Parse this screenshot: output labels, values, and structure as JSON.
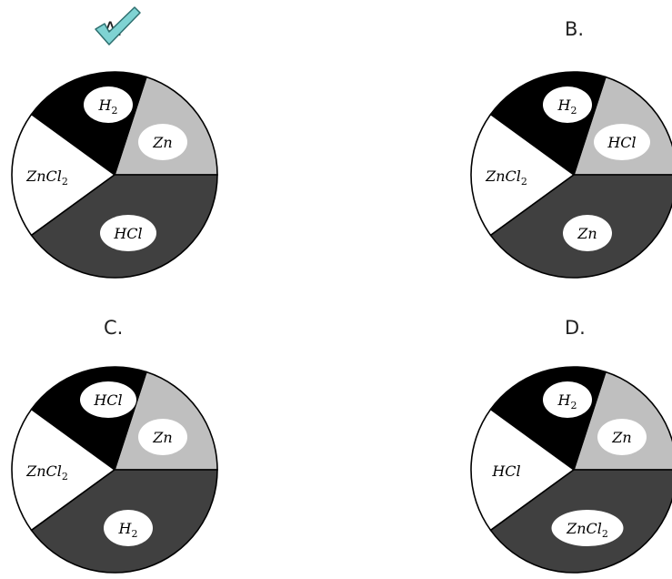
{
  "colors": {
    "black_slice": "#000000",
    "light_slice": "#bfbfbf",
    "white_slice": "#ffffff",
    "dark_slice": "#404040",
    "label_bg": "#ffffff",
    "outline": "#000000",
    "check_fill": "#7fd3d3",
    "check_stroke": "#2e6f6f"
  },
  "selected_option": "A",
  "selected_icon": "checkmark-icon",
  "options": [
    {
      "letter": "A.",
      "slices": {
        "black": {
          "base": "H",
          "sub": "2"
        },
        "light": {
          "base": "Zn",
          "sub": ""
        },
        "white": {
          "base": "ZnCl",
          "sub": "2"
        },
        "dark": {
          "base": "HCl",
          "sub": ""
        }
      }
    },
    {
      "letter": "B.",
      "slices": {
        "black": {
          "base": "H",
          "sub": "2"
        },
        "light": {
          "base": "HCl",
          "sub": ""
        },
        "white": {
          "base": "ZnCl",
          "sub": "2"
        },
        "dark": {
          "base": "Zn",
          "sub": ""
        }
      }
    },
    {
      "letter": "C.",
      "slices": {
        "black": {
          "base": "HCl",
          "sub": ""
        },
        "light": {
          "base": "Zn",
          "sub": ""
        },
        "white": {
          "base": "ZnCl",
          "sub": "2"
        },
        "dark": {
          "base": "H",
          "sub": "2"
        }
      }
    },
    {
      "letter": "D.",
      "slices": {
        "black": {
          "base": "H",
          "sub": "2"
        },
        "light": {
          "base": "Zn",
          "sub": ""
        },
        "white": {
          "base": "HCl",
          "sub": ""
        },
        "dark": {
          "base": "ZnCl",
          "sub": "2"
        }
      }
    }
  ]
}
